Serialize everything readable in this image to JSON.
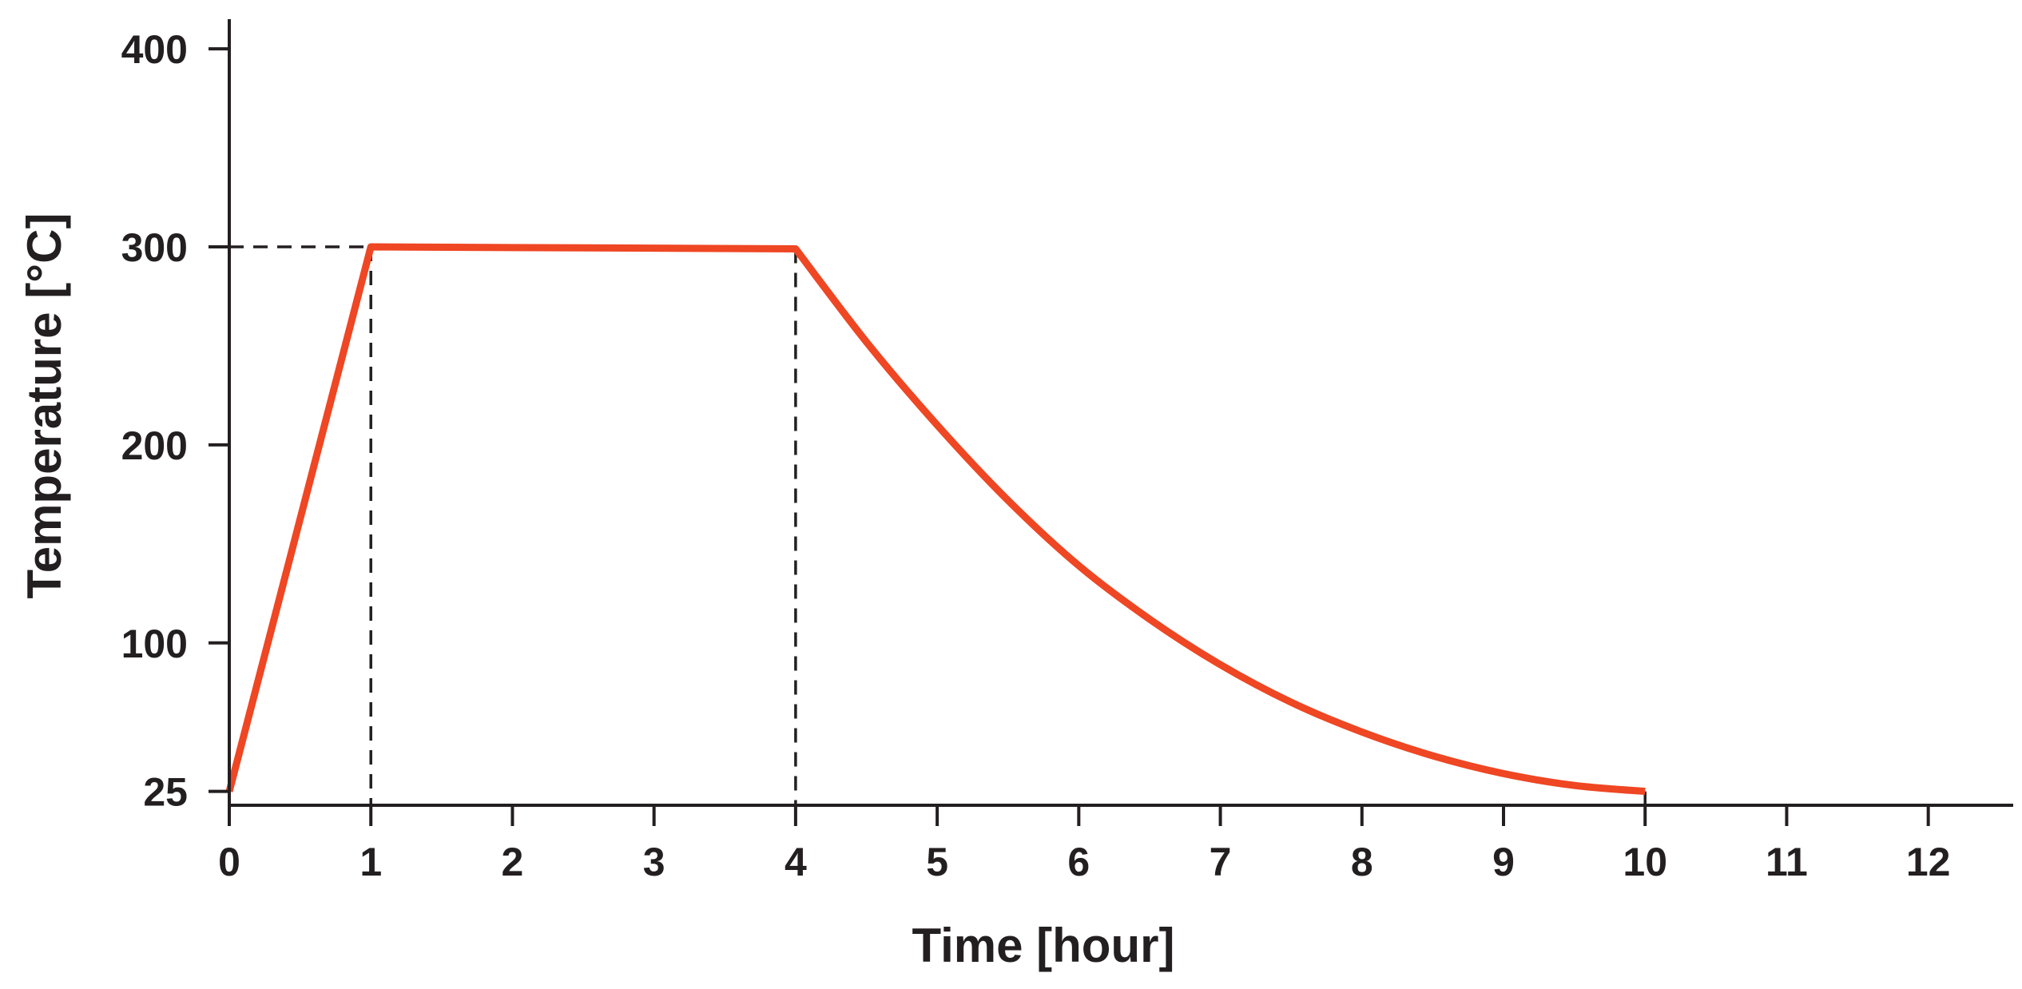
{
  "chart_data": {
    "type": "line",
    "title": "",
    "xlabel": "Time [hour]",
    "ylabel": "Temperature [°C]",
    "xlim": [
      0,
      12.6
    ],
    "ylim": [
      18,
      415
    ],
    "x_ticks": [
      0,
      1,
      2,
      3,
      4,
      5,
      6,
      7,
      8,
      9,
      10,
      11,
      12
    ],
    "y_ticks": [
      25,
      100,
      200,
      300,
      400
    ],
    "grid": false,
    "legend": "none",
    "colors": {
      "series": "#ef4623",
      "axis": "#231f20"
    },
    "series": [
      {
        "x": [
          0,
          1,
          4,
          4.5,
          5,
          5.5,
          6,
          6.5,
          7,
          7.5,
          8,
          8.5,
          9,
          9.5,
          10
        ],
        "y": [
          25,
          300,
          299,
          252,
          210,
          172,
          139,
          112,
          89,
          70,
          55,
          43,
          34,
          28,
          25
        ]
      }
    ],
    "reference_lines": [
      {
        "orientation": "horizontal",
        "value": 300,
        "x_from": 0,
        "x_to": 1
      },
      {
        "orientation": "vertical",
        "value": 1,
        "y_from": 300
      },
      {
        "orientation": "vertical",
        "value": 4,
        "y_from": 299
      },
      {
        "orientation": "vertical",
        "value": 10,
        "y_from": 25
      }
    ]
  }
}
